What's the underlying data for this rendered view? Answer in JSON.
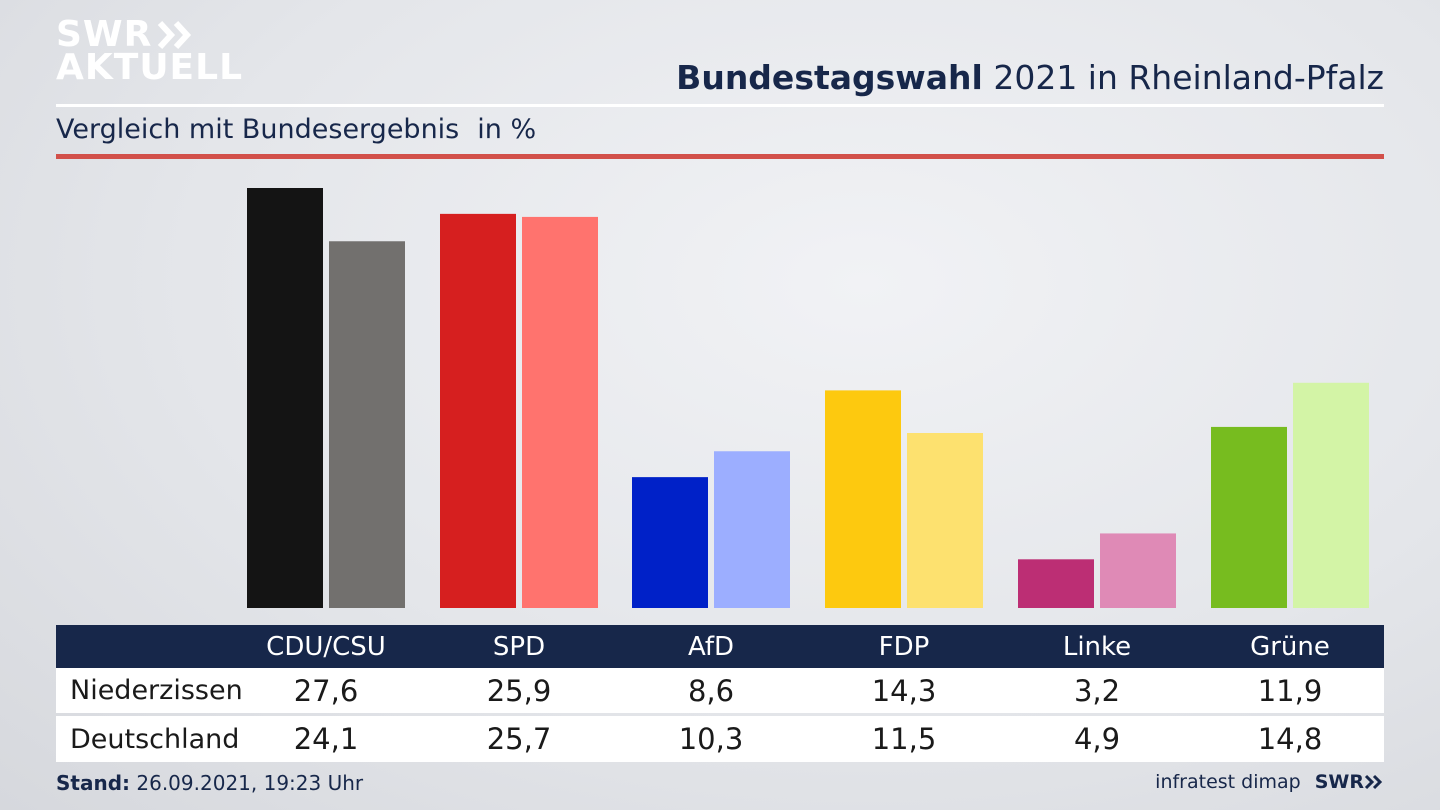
{
  "logo": {
    "line1": "SWR",
    "line2": "AKTUELL"
  },
  "header": {
    "title_bold": "Bundestagswahl",
    "title_rest": "2021 in Rheinland-Pfalz",
    "subtitle": "Vergleich mit Bundesergebnis",
    "unit": "in %"
  },
  "colors": {
    "navy": "#17274a",
    "accent_rule": "#d2504a",
    "primary": [
      "#141414",
      "#d61f1f",
      "#0021c8",
      "#fdc90f",
      "#bc2e74",
      "#77bc1f"
    ],
    "secondary": [
      "#72706e",
      "#ff736e",
      "#9caeff",
      "#fde16f",
      "#df8ab6",
      "#d3f4a6"
    ]
  },
  "chart_data": {
    "type": "bar",
    "categories": [
      "CDU/CSU",
      "SPD",
      "AfD",
      "FDP",
      "Linke",
      "Grüne"
    ],
    "series": [
      {
        "name": "Niederzissen",
        "values": [
          27.6,
          25.9,
          8.6,
          14.3,
          3.2,
          11.9
        ]
      },
      {
        "name": "Deutschland",
        "values": [
          24.1,
          25.7,
          10.3,
          11.5,
          4.9,
          14.8
        ]
      }
    ],
    "title": "Bundestagswahl 2021 in Rheinland-Pfalz",
    "subtitle": "Vergleich mit Bundesergebnis",
    "ylabel": "in %",
    "ylim": [
      0,
      27.6
    ],
    "grid": false
  },
  "table": {
    "rows": [
      {
        "label": "Niederzissen",
        "values": [
          "27,6",
          "25,9",
          "8,6",
          "14,3",
          "3,2",
          "11,9"
        ]
      },
      {
        "label": "Deutschland",
        "values": [
          "24,1",
          "25,7",
          "10,3",
          "11,5",
          "4,9",
          "14,8"
        ]
      }
    ]
  },
  "footer": {
    "stand_label": "Stand:",
    "stand_value": "26.09.2021, 19:23 Uhr",
    "source": "infratest dimap",
    "brand": "SWR"
  }
}
